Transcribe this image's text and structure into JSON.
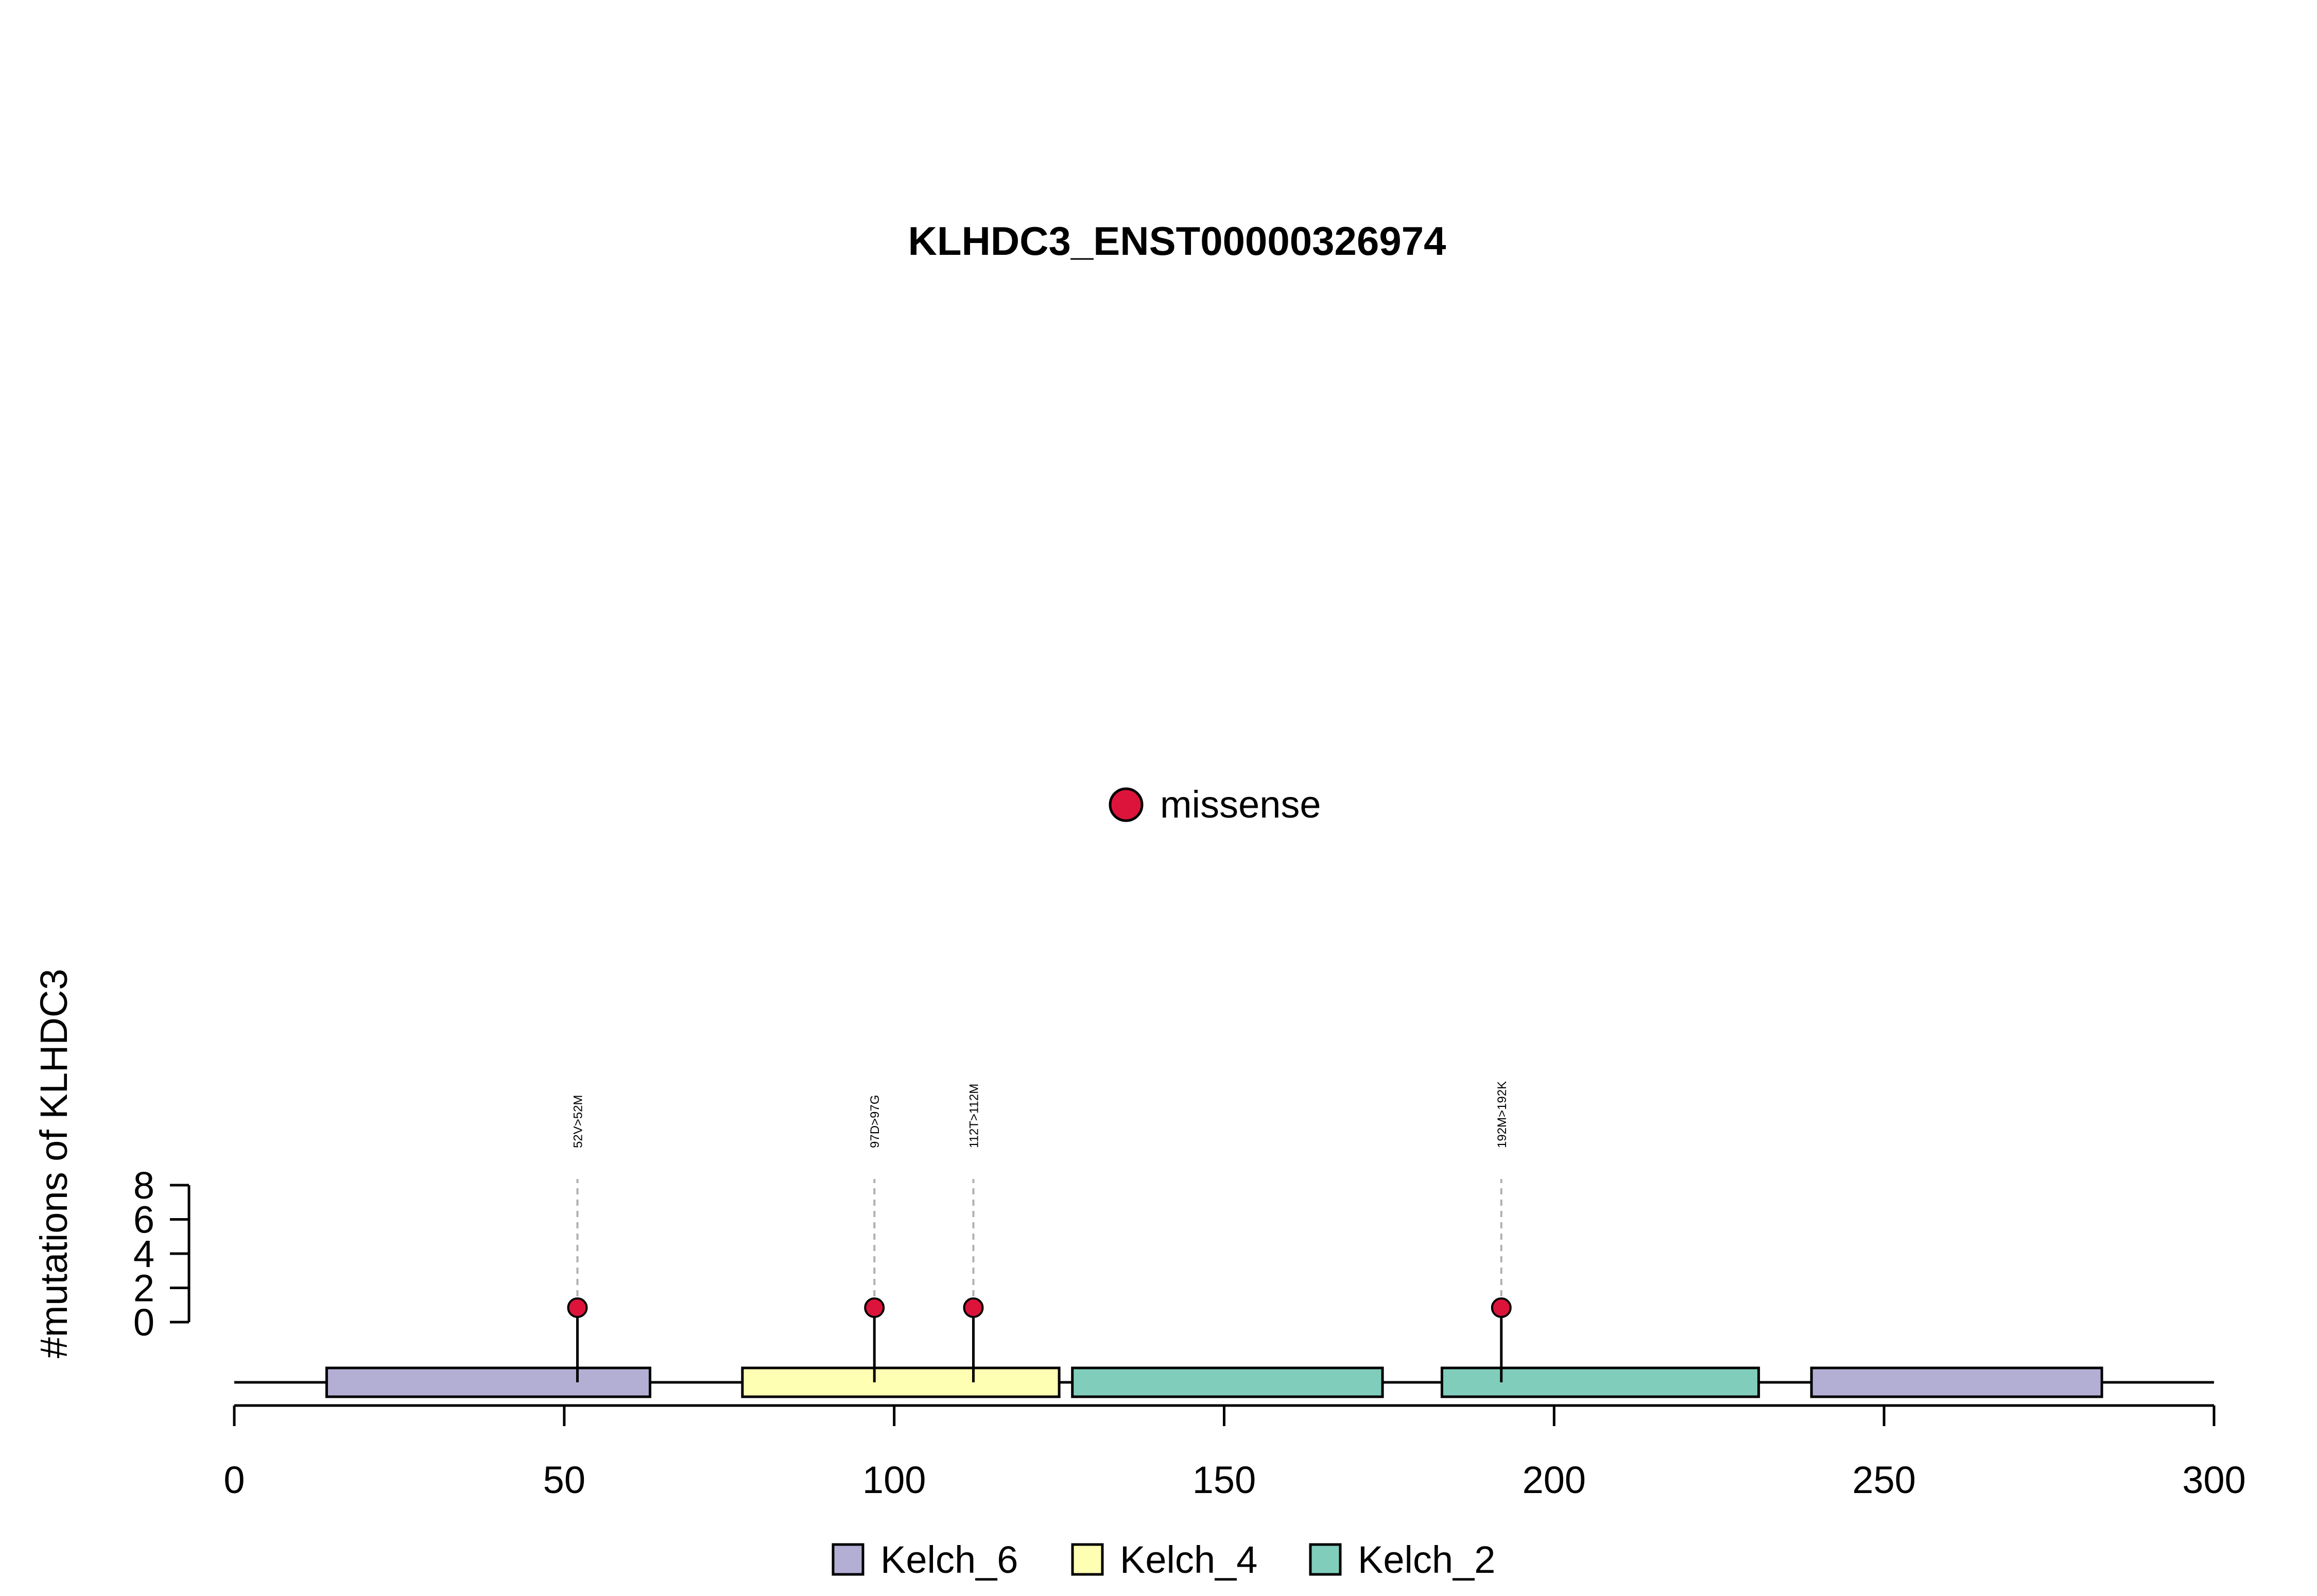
{
  "chart_data": {
    "type": "lollipop",
    "title": "KLHDC3_ENST00000326974",
    "ylabel": "#mutations of KLHDC3",
    "xlabel": "",
    "xlim": [
      0,
      300
    ],
    "x_ticks": [
      0,
      50,
      100,
      150,
      200,
      250,
      300
    ],
    "y_ticks": [
      0,
      2,
      4,
      6,
      8
    ],
    "ylim": [
      0,
      8
    ],
    "protein_length": 300,
    "domains": [
      {
        "name": "Kelch_6",
        "start": 14,
        "end": 63,
        "color": "#b3aed4"
      },
      {
        "name": "Kelch_4",
        "start": 77,
        "end": 125,
        "color": "#ffffb3"
      },
      {
        "name": "Kelch_2",
        "start": 127,
        "end": 174,
        "color": "#80cdbb"
      },
      {
        "name": "Kelch_2",
        "start": 183,
        "end": 231,
        "color": "#80cdbb"
      },
      {
        "name": "Kelch_6",
        "start": 239,
        "end": 283,
        "color": "#b3aed4"
      }
    ],
    "mutations": [
      {
        "position": 52,
        "label": "52V>52M",
        "count": 1,
        "type": "missense"
      },
      {
        "position": 97,
        "label": "97D>97G",
        "count": 1,
        "type": "missense"
      },
      {
        "position": 112,
        "label": "112T>112M",
        "count": 1,
        "type": "missense"
      },
      {
        "position": 192,
        "label": "192M>192K",
        "count": 1,
        "type": "missense"
      }
    ],
    "mutation_legend": [
      {
        "label": "missense",
        "color": "#dc143c"
      }
    ],
    "domain_legend": [
      {
        "label": "Kelch_6",
        "color": "#b3aed4"
      },
      {
        "label": "Kelch_4",
        "color": "#ffffb3"
      },
      {
        "label": "Kelch_2",
        "color": "#80cdbb"
      }
    ]
  }
}
